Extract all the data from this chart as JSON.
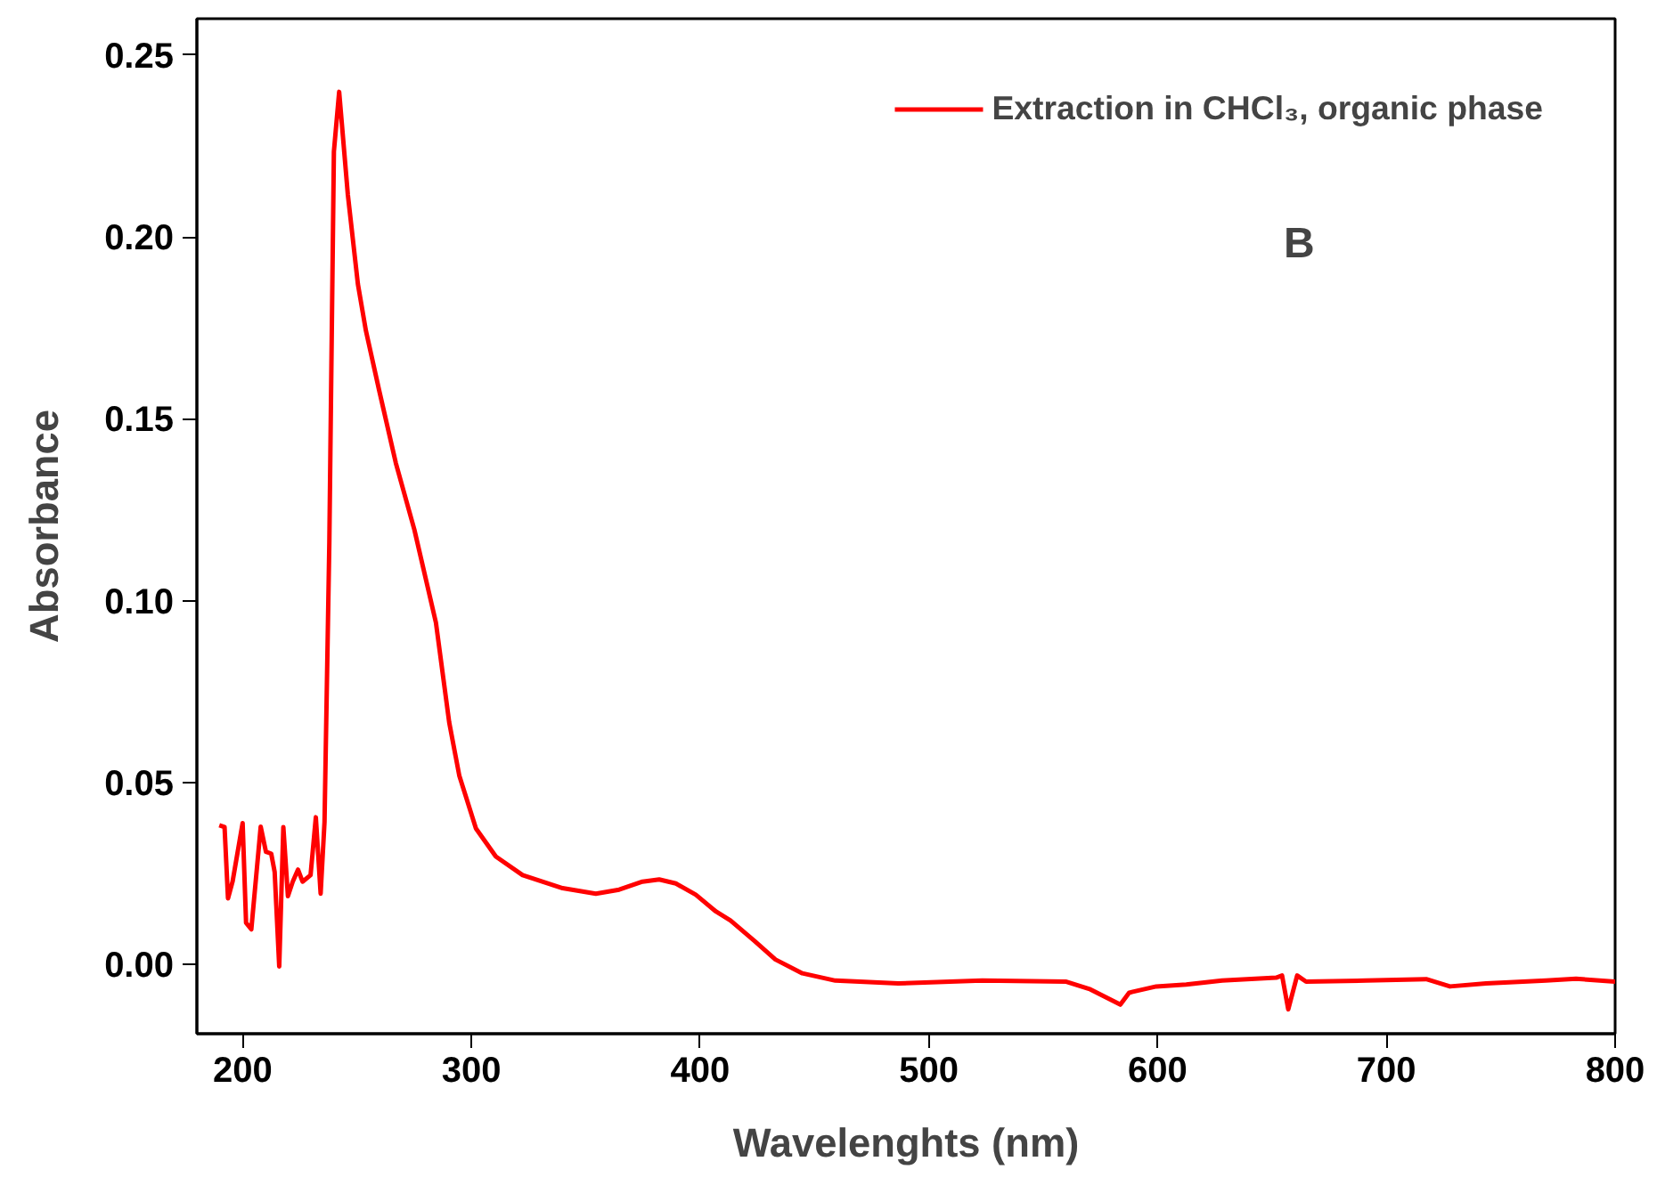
{
  "chart_data": {
    "type": "line",
    "xlabel": "Wavelenghts (nm)",
    "ylabel": "Absorbance",
    "annotations": [
      "B"
    ],
    "xlim": [
      180,
      800
    ],
    "ylim": [
      -0.019,
      0.26
    ],
    "xticks": [
      200,
      300,
      400,
      500,
      600,
      700,
      800
    ],
    "yticks": [
      {
        "value": 0,
        "label": "0.00"
      },
      {
        "value": 0.05,
        "label": "0.05"
      },
      {
        "value": 0.1,
        "label": "0.10"
      },
      {
        "value": 0.15,
        "label": "0.15"
      },
      {
        "value": 0.2,
        "label": "0.20"
      },
      {
        "value": 0.25,
        "label": "0.25"
      }
    ],
    "grid": false,
    "legend": "top right",
    "marker": "none",
    "line_style": "solid",
    "series": [
      {
        "name": "Extraction in CHCl₃, organic phase",
        "color": "#ff0000",
        "x": [
          189.8,
          192.1,
          193.6,
          195.6,
          200,
          201.5,
          203.8,
          207.9,
          210.2,
          212.5,
          214,
          216,
          217.8,
          219.8,
          221.9,
          224.2,
          226.2,
          229.7,
          232,
          234.1,
          235.8,
          237.9,
          239.9,
          242.2,
          246,
          250.4,
          253.9,
          259.7,
          267,
          275.1,
          284.5,
          290.3,
          294.7,
          302,
          310.7,
          322.4,
          339.9,
          354.4,
          364.6,
          374.8,
          382.1,
          389.4,
          398.1,
          406.9,
          413.3,
          423.8,
          432.9,
          444.7,
          459.1,
          486.6,
          523.3,
          560.1,
          570.6,
          583.7,
          587.6,
          599.4,
          612.5,
          628.2,
          651.8,
          654.4,
          657.1,
          661,
          664.9,
          691.1,
          717.4,
          727.8,
          743.6,
          769.8,
          782.9,
          800
        ],
        "values": [
          0.0383,
          0.0378,
          0.0182,
          0.0228,
          0.0389,
          0.0115,
          0.0097,
          0.0379,
          0.031,
          0.0305,
          0.0255,
          -0.0005,
          0.0378,
          0.0188,
          0.0228,
          0.0261,
          0.0228,
          0.0246,
          0.0405,
          0.0195,
          0.0392,
          0.1159,
          0.2235,
          0.2399,
          0.2116,
          0.187,
          0.1742,
          0.1578,
          0.1378,
          0.1195,
          0.094,
          0.0666,
          0.052,
          0.0374,
          0.0297,
          0.0246,
          0.021,
          0.0195,
          0.0206,
          0.0228,
          0.0234,
          0.0223,
          0.0192,
          0.0146,
          0.0121,
          0.0065,
          0.0014,
          -0.0024,
          -0.0044,
          -0.0052,
          -0.0044,
          -0.0047,
          -0.0068,
          -0.011,
          -0.0077,
          -0.006,
          -0.0055,
          -0.0044,
          -0.0036,
          -0.003,
          -0.0123,
          -0.003,
          -0.0047,
          -0.0044,
          -0.004,
          -0.006,
          -0.0052,
          -0.0044,
          -0.0039,
          -0.0047
        ]
      }
    ]
  }
}
